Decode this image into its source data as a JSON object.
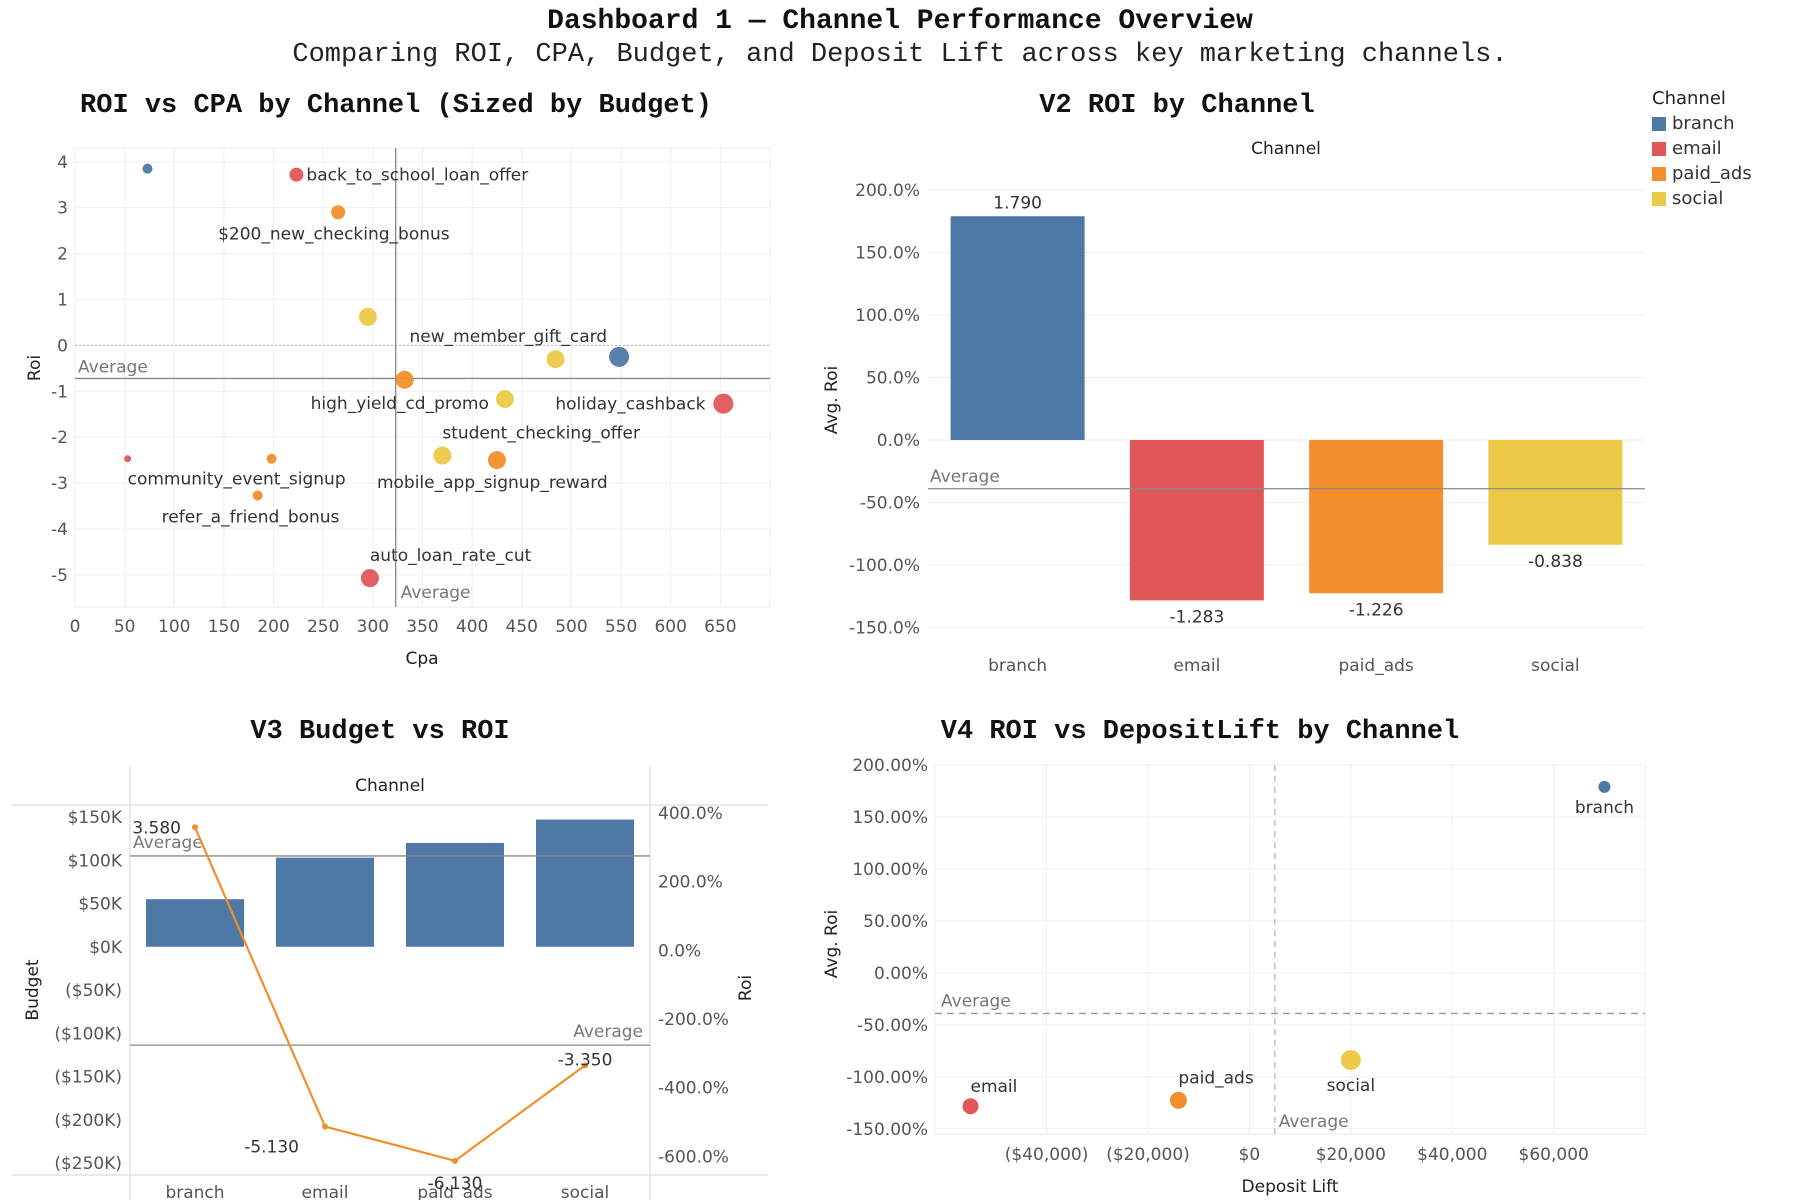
{
  "dashboard": {
    "title": "Dashboard 1 — Channel Performance Overview",
    "subtitle": "Comparing ROI, CPA, Budget, and Deposit Lift across key marketing channels."
  },
  "legend": {
    "title": "Channel",
    "items": [
      {
        "label": "branch",
        "color": "#4e79a7"
      },
      {
        "label": "email",
        "color": "#e15759"
      },
      {
        "label": "paid_ads",
        "color": "#f28e2b"
      },
      {
        "label": "social",
        "color": "#edc948"
      }
    ]
  },
  "chart_data": [
    {
      "type": "scatter",
      "title": "ROI vs CPA by Channel (Sized by Budget)",
      "xlabel": "Cpa",
      "ylabel": "Roi",
      "xlim": [
        0,
        700
      ],
      "ylim": [
        -5.7,
        4.3
      ],
      "x_ticks": [
        "0",
        "50",
        "100",
        "150",
        "200",
        "250",
        "300",
        "350",
        "400",
        "450",
        "500",
        "550",
        "600",
        "650"
      ],
      "y_ticks": [
        "4",
        "3",
        "2",
        "1",
        "0",
        "-1",
        "-2",
        "-3",
        "-4",
        "-5"
      ],
      "reference_lines": {
        "x_average": 323,
        "y_average": -0.72,
        "label": "Average"
      },
      "points": [
        {
          "label": "",
          "channel": "branch",
          "x": 73,
          "y": 3.85,
          "size": "small"
        },
        {
          "label": "back_to_school_loan_offer",
          "channel": "email",
          "x": 223,
          "y": 3.72,
          "size": "medium"
        },
        {
          "label": "$200_new_checking_bonus",
          "channel": "paid_ads",
          "x": 265,
          "y": 2.9,
          "size": "medium"
        },
        {
          "label": "",
          "channel": "social",
          "x": 295,
          "y": 0.62,
          "size": "large"
        },
        {
          "label": "new_member_gift_card",
          "channel": "social",
          "x": 484,
          "y": -0.3,
          "size": "large"
        },
        {
          "label": "",
          "channel": "branch",
          "x": 548,
          "y": -0.25,
          "size": "xlarge"
        },
        {
          "label": "high_yield_cd_promo",
          "channel": "paid_ads",
          "x": 332,
          "y": -0.75,
          "size": "large"
        },
        {
          "label": "",
          "channel": "social",
          "x": 433,
          "y": -1.17,
          "size": "large"
        },
        {
          "label": "holiday_cashback",
          "channel": "email",
          "x": 653,
          "y": -1.27,
          "size": "xlarge"
        },
        {
          "label": "student_checking_offer",
          "channel": "social",
          "x": 370,
          "y": -2.4,
          "size": "large"
        },
        {
          "label": "mobile_app_signup_reward",
          "channel": "paid_ads",
          "x": 425,
          "y": -2.5,
          "size": "large"
        },
        {
          "label": "community_event_signup",
          "channel": "email",
          "x": 53,
          "y": -2.47,
          "size": "tiny"
        },
        {
          "label": "",
          "channel": "paid_ads",
          "x": 198,
          "y": -2.47,
          "size": "small"
        },
        {
          "label": "refer_a_friend_bonus",
          "channel": "paid_ads",
          "x": 184,
          "y": -3.27,
          "size": "small"
        },
        {
          "label": "auto_loan_rate_cut",
          "channel": "email",
          "x": 297,
          "y": -5.07,
          "size": "large"
        }
      ]
    },
    {
      "type": "bar",
      "title": "V2 ROI by Channel",
      "header": "Channel",
      "ylabel": "Avg. Roi",
      "categories": [
        "branch",
        "email",
        "paid_ads",
        "social"
      ],
      "values": [
        1.79,
        -1.283,
        -1.226,
        -0.838
      ],
      "value_labels": [
        "1.790",
        "-1.283",
        "-1.226",
        "-0.838"
      ],
      "colors": [
        "#4e79a7",
        "#e15759",
        "#f28e2b",
        "#edc948"
      ],
      "ylim": [
        -1.6,
        2.2
      ],
      "y_ticks": [
        "200.0%",
        "150.0%",
        "100.0%",
        "50.0%",
        "0.0%",
        "-50.0%",
        "-100.0%",
        "-150.0%"
      ],
      "average": -0.39,
      "average_label": "Average"
    },
    {
      "type": "bar",
      "title": "V3 Budget vs ROI",
      "header": "Channel",
      "categories": [
        "branch",
        "email",
        "paid_ads",
        "social"
      ],
      "bar_series": {
        "name": "Budget",
        "values": [
          55000,
          103000,
          120000,
          147000
        ],
        "color": "#4e79a7"
      },
      "line_series": {
        "name": "Roi",
        "values": [
          3.58,
          -5.13,
          -6.13,
          -3.35
        ],
        "value_labels": [
          "3.580",
          "-5.130",
          "-6.130",
          "-3.350"
        ],
        "color": "#f28e2b"
      },
      "ylabel_left": "Budget",
      "ylabel_right": "Roi",
      "ylim_left": [
        -250000,
        150000
      ],
      "ylim_right": [
        -6.6,
        4.2
      ],
      "y_ticks_left": [
        "$150K",
        "$100K",
        "$50K",
        "$0K",
        "($50K)",
        "($100K)",
        "($150K)",
        "($200K)",
        "($250K)"
      ],
      "y_ticks_right": [
        "400.0%",
        "200.0%",
        "0.0%",
        "-200.0%",
        "-400.0%",
        "-600.0%"
      ],
      "average_budget": 105000,
      "average_roi": -2.76,
      "average_label": "Average"
    },
    {
      "type": "scatter",
      "title": "V4 ROI vs DepositLift by Channel",
      "xlabel": "Deposit Lift",
      "ylabel": "Avg. Roi",
      "xlim": [
        -62000,
        78000
      ],
      "ylim": [
        -1.55,
        2.0
      ],
      "x_ticks": [
        "($40,000)",
        "($20,000)",
        "$0",
        "$20,000",
        "$40,000",
        "$60,000"
      ],
      "y_ticks": [
        "200.00%",
        "150.00%",
        "100.00%",
        "50.00%",
        "0.00%",
        "-50.00%",
        "-100.00%",
        "-150.00%"
      ],
      "x_average": 5000,
      "y_average": -0.39,
      "average_label": "Average",
      "points": [
        {
          "label": "branch",
          "channel": "branch",
          "x": 70000,
          "y": 1.79
        },
        {
          "label": "email",
          "channel": "email",
          "x": -55000,
          "y": -1.283
        },
        {
          "label": "paid_ads",
          "channel": "paid_ads",
          "x": -14000,
          "y": -1.226
        },
        {
          "label": "social",
          "channel": "social",
          "x": 20000,
          "y": -0.838
        }
      ]
    }
  ]
}
